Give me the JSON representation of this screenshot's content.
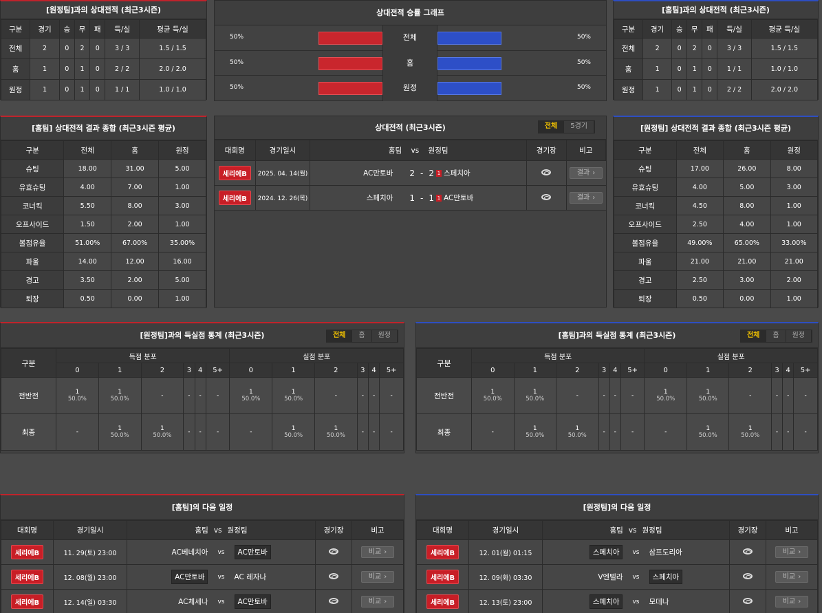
{
  "h2h_away": {
    "title": "[원정팀]과의 상대전적 (최근3시즌)",
    "headers": [
      "구분",
      "경기",
      "승",
      "무",
      "패",
      "득/실",
      "평균 득/실"
    ],
    "rows": [
      [
        "전체",
        "2",
        "0",
        "2",
        "0",
        "3 / 3",
        "1.5 / 1.5"
      ],
      [
        "홈",
        "1",
        "0",
        "1",
        "0",
        "2 / 2",
        "2.0 / 2.0"
      ],
      [
        "원정",
        "1",
        "0",
        "1",
        "0",
        "1 / 1",
        "1.0 / 1.0"
      ]
    ]
  },
  "h2h_home": {
    "title": "[홈팀]과의 상대전적 (최근3시즌)",
    "headers": [
      "구분",
      "경기",
      "승",
      "무",
      "패",
      "득/실",
      "평균 득/실"
    ],
    "rows": [
      [
        "전체",
        "2",
        "0",
        "2",
        "0",
        "3 / 3",
        "1.5 / 1.5"
      ],
      [
        "홈",
        "1",
        "0",
        "1",
        "0",
        "1 / 1",
        "1.0 / 1.0"
      ],
      [
        "원정",
        "1",
        "0",
        "1",
        "0",
        "2 / 2",
        "2.0 / 2.0"
      ]
    ]
  },
  "graph": {
    "title": "상대전적 승률 그래프",
    "rows": [
      {
        "label": "전체",
        "left": "50%",
        "right": "50%",
        "left_val": 0.5,
        "right_val": 0.5
      },
      {
        "label": "홈",
        "left": "50%",
        "right": "50%",
        "left_val": 0.5,
        "right_val": 0.5
      },
      {
        "label": "원정",
        "left": "50%",
        "right": "50%",
        "left_val": 0.5,
        "right_val": 0.5
      }
    ]
  },
  "summary_home": {
    "title": "[홈팀] 상대전적 결과 종합 (최근3시즌 평균)",
    "headers": [
      "구분",
      "전체",
      "홈",
      "원정"
    ],
    "rows": [
      [
        "슈팅",
        "18.00",
        "31.00",
        "5.00"
      ],
      [
        "유효슈팅",
        "4.00",
        "7.00",
        "1.00"
      ],
      [
        "코너킥",
        "5.50",
        "8.00",
        "3.00"
      ],
      [
        "오프사이드",
        "1.50",
        "2.00",
        "1.00"
      ],
      [
        "볼점유율",
        "51.00%",
        "67.00%",
        "35.00%"
      ],
      [
        "파울",
        "14.00",
        "12.00",
        "16.00"
      ],
      [
        "경고",
        "3.50",
        "2.00",
        "5.00"
      ],
      [
        "퇴장",
        "0.50",
        "0.00",
        "1.00"
      ]
    ]
  },
  "summary_away": {
    "title": "[원정팀] 상대전적 결과 종합 (최근3시즌 평균)",
    "headers": [
      "구분",
      "전체",
      "홈",
      "원정"
    ],
    "rows": [
      [
        "슈팅",
        "17.00",
        "26.00",
        "8.00"
      ],
      [
        "유효슈팅",
        "4.00",
        "5.00",
        "3.00"
      ],
      [
        "코너킥",
        "4.50",
        "8.00",
        "1.00"
      ],
      [
        "오프사이드",
        "2.50",
        "4.00",
        "1.00"
      ],
      [
        "볼점유율",
        "49.00%",
        "65.00%",
        "33.00%"
      ],
      [
        "파울",
        "21.00",
        "21.00",
        "21.00"
      ],
      [
        "경고",
        "2.50",
        "3.00",
        "2.00"
      ],
      [
        "퇴장",
        "0.50",
        "0.00",
        "1.00"
      ]
    ]
  },
  "matches": {
    "title": "상대전적 (최근3시즌)",
    "tabs": [
      "전체",
      "5경기"
    ],
    "headers": {
      "league": "대회명",
      "date": "경기일시",
      "home": "홈팀",
      "vs": "vs",
      "away": "원정팀",
      "stadium": "경기장",
      "note": "비고"
    },
    "rows": [
      {
        "league": "세리에B",
        "date": "2025. 04. 14(월)",
        "home": "AC만토바",
        "score_h": "2",
        "dash": "-",
        "score_a": "2",
        "card": "1",
        "away": "스페치아",
        "btn": "결과"
      },
      {
        "league": "세리에B",
        "date": "2024. 12. 26(목)",
        "home": "스페치아",
        "score_h": "1",
        "dash": "-",
        "score_a": "1",
        "card": "1",
        "away": "AC만토바",
        "btn": "결과"
      }
    ]
  },
  "goals_left": {
    "title": "[원정팀]과의 득실점 통계 (최근3시즌)",
    "tabs": [
      "전체",
      "홈",
      "원정"
    ],
    "col": "구분",
    "scored": "득점 분포",
    "conceded": "실점 분포",
    "buckets": [
      "0",
      "1",
      "2",
      "3",
      "4",
      "5+"
    ],
    "rows": [
      {
        "label": "전반전",
        "cells": [
          [
            "1",
            "50.0%"
          ],
          [
            "1",
            "50.0%"
          ],
          [
            "-",
            ""
          ],
          [
            "-",
            ""
          ],
          [
            "-",
            ""
          ],
          [
            "-",
            ""
          ],
          [
            "1",
            "50.0%"
          ],
          [
            "1",
            "50.0%"
          ],
          [
            "-",
            ""
          ],
          [
            "-",
            ""
          ],
          [
            "-",
            ""
          ],
          [
            "-",
            ""
          ]
        ]
      },
      {
        "label": "최종",
        "cells": [
          [
            "-",
            ""
          ],
          [
            "1",
            "50.0%"
          ],
          [
            "1",
            "50.0%"
          ],
          [
            "-",
            ""
          ],
          [
            "-",
            ""
          ],
          [
            "-",
            ""
          ],
          [
            "-",
            ""
          ],
          [
            "1",
            "50.0%"
          ],
          [
            "1",
            "50.0%"
          ],
          [
            "-",
            ""
          ],
          [
            "-",
            ""
          ],
          [
            "-",
            ""
          ]
        ]
      }
    ]
  },
  "goals_right": {
    "title": "[홈팀]과의 득실점 통계 (최근3시즌)",
    "tabs": [
      "전체",
      "홈",
      "원정"
    ],
    "col": "구분",
    "scored": "득점 분포",
    "conceded": "실점 분포",
    "buckets": [
      "0",
      "1",
      "2",
      "3",
      "4",
      "5+"
    ],
    "rows": [
      {
        "label": "전반전",
        "cells": [
          [
            "1",
            "50.0%"
          ],
          [
            "1",
            "50.0%"
          ],
          [
            "-",
            ""
          ],
          [
            "-",
            ""
          ],
          [
            "-",
            ""
          ],
          [
            "-",
            ""
          ],
          [
            "1",
            "50.0%"
          ],
          [
            "1",
            "50.0%"
          ],
          [
            "-",
            ""
          ],
          [
            "-",
            ""
          ],
          [
            "-",
            ""
          ],
          [
            "-",
            ""
          ]
        ]
      },
      {
        "label": "최종",
        "cells": [
          [
            "-",
            ""
          ],
          [
            "1",
            "50.0%"
          ],
          [
            "1",
            "50.0%"
          ],
          [
            "-",
            ""
          ],
          [
            "-",
            ""
          ],
          [
            "-",
            ""
          ],
          [
            "-",
            ""
          ],
          [
            "1",
            "50.0%"
          ],
          [
            "1",
            "50.0%"
          ],
          [
            "-",
            ""
          ],
          [
            "-",
            ""
          ],
          [
            "-",
            ""
          ]
        ]
      }
    ]
  },
  "next_home": {
    "title": "[홈팀]의 다음 일정",
    "headers": {
      "league": "대회명",
      "date": "경기일시",
      "home": "홈팀",
      "vs": "vs",
      "away": "원정팀",
      "stadium": "경기장",
      "note": "비고"
    },
    "rows": [
      {
        "league": "세리에B",
        "date": "11. 29(토) 23:00",
        "home": "AC베네치아",
        "away": "AC만토바",
        "btn": "비교",
        "hl": "away"
      },
      {
        "league": "세리에B",
        "date": "12. 08(월) 23:00",
        "home": "AC만토바",
        "away": "AC 레자나",
        "btn": "비교",
        "hl": "home"
      },
      {
        "league": "세리에B",
        "date": "12. 14(일) 03:30",
        "home": "AC체세나",
        "away": "AC만토바",
        "btn": "비교",
        "hl": "away"
      }
    ]
  },
  "next_away": {
    "title": "[원정팀]의 다음 일정",
    "headers": {
      "league": "대회명",
      "date": "경기일시",
      "home": "홈팀",
      "vs": "vs",
      "away": "원정팀",
      "stadium": "경기장",
      "note": "비고"
    },
    "rows": [
      {
        "league": "세리에B",
        "date": "12. 01(월) 01:15",
        "home": "스페치아",
        "away": "삼프도리아",
        "btn": "비교",
        "hl": "home"
      },
      {
        "league": "세리에B",
        "date": "12. 09(화) 03:30",
        "home": "V엔텔라",
        "away": "스페치아",
        "btn": "비교",
        "hl": "away"
      },
      {
        "league": "세리에B",
        "date": "12. 13(토) 23:00",
        "home": "스페치아",
        "away": "모데나",
        "btn": "비교",
        "hl": "home"
      }
    ]
  },
  "colors": {
    "red": "#c9262d",
    "blue": "#2d4fc7",
    "tab_active": "#f2c200"
  }
}
